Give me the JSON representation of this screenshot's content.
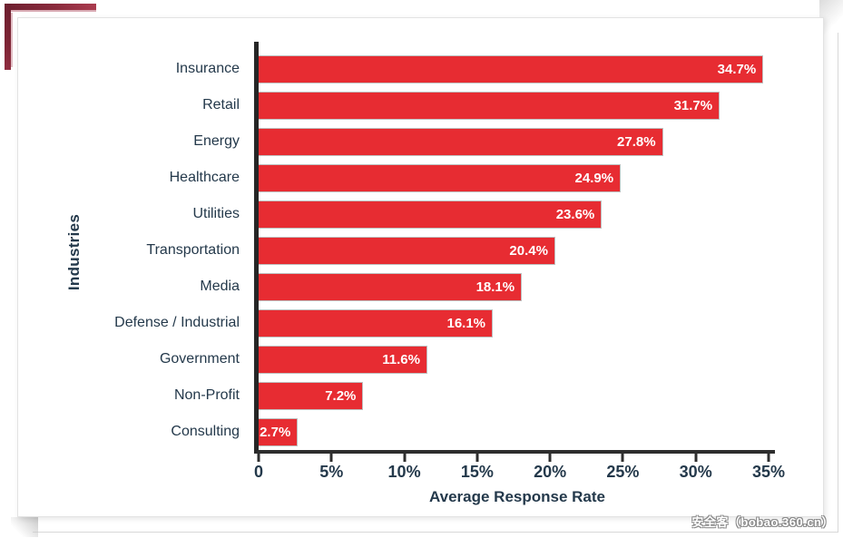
{
  "page": {
    "watermark": "安全客（bobao.360.cn）"
  },
  "chart_data": {
    "type": "bar",
    "orientation": "horizontal",
    "title": "",
    "xlabel": "Average Response Rate",
    "ylabel": "Industries",
    "categories": [
      "Insurance",
      "Retail",
      "Energy",
      "Healthcare",
      "Utilities",
      "Transportation",
      "Media",
      "Defense / Industrial",
      "Government",
      "Non-Profit",
      "Consulting"
    ],
    "values": [
      34.7,
      31.7,
      27.8,
      24.9,
      23.6,
      20.4,
      18.1,
      16.1,
      11.6,
      7.2,
      2.7
    ],
    "value_labels": [
      "34.7%",
      "31.7%",
      "27.8%",
      "24.9%",
      "23.6%",
      "20.4%",
      "18.1%",
      "16.1%",
      "11.6%",
      "7.2%",
      "2.7%"
    ],
    "x_ticks": [
      {
        "label": "0",
        "value": 0
      },
      {
        "label": "5%",
        "value": 5
      },
      {
        "label": "10%",
        "value": 10
      },
      {
        "label": "15%",
        "value": 15
      },
      {
        "label": "20%",
        "value": 20
      },
      {
        "label": "25%",
        "value": 25
      },
      {
        "label": "30%",
        "value": 30
      },
      {
        "label": "35%",
        "value": 35
      }
    ],
    "xlim": [
      0,
      35.5
    ],
    "grid": false,
    "legend": false,
    "bar_color": "#e72c32",
    "value_label_color": "#ffffff",
    "text_color": "#24394b",
    "axis_color": "#2e2e2e"
  }
}
